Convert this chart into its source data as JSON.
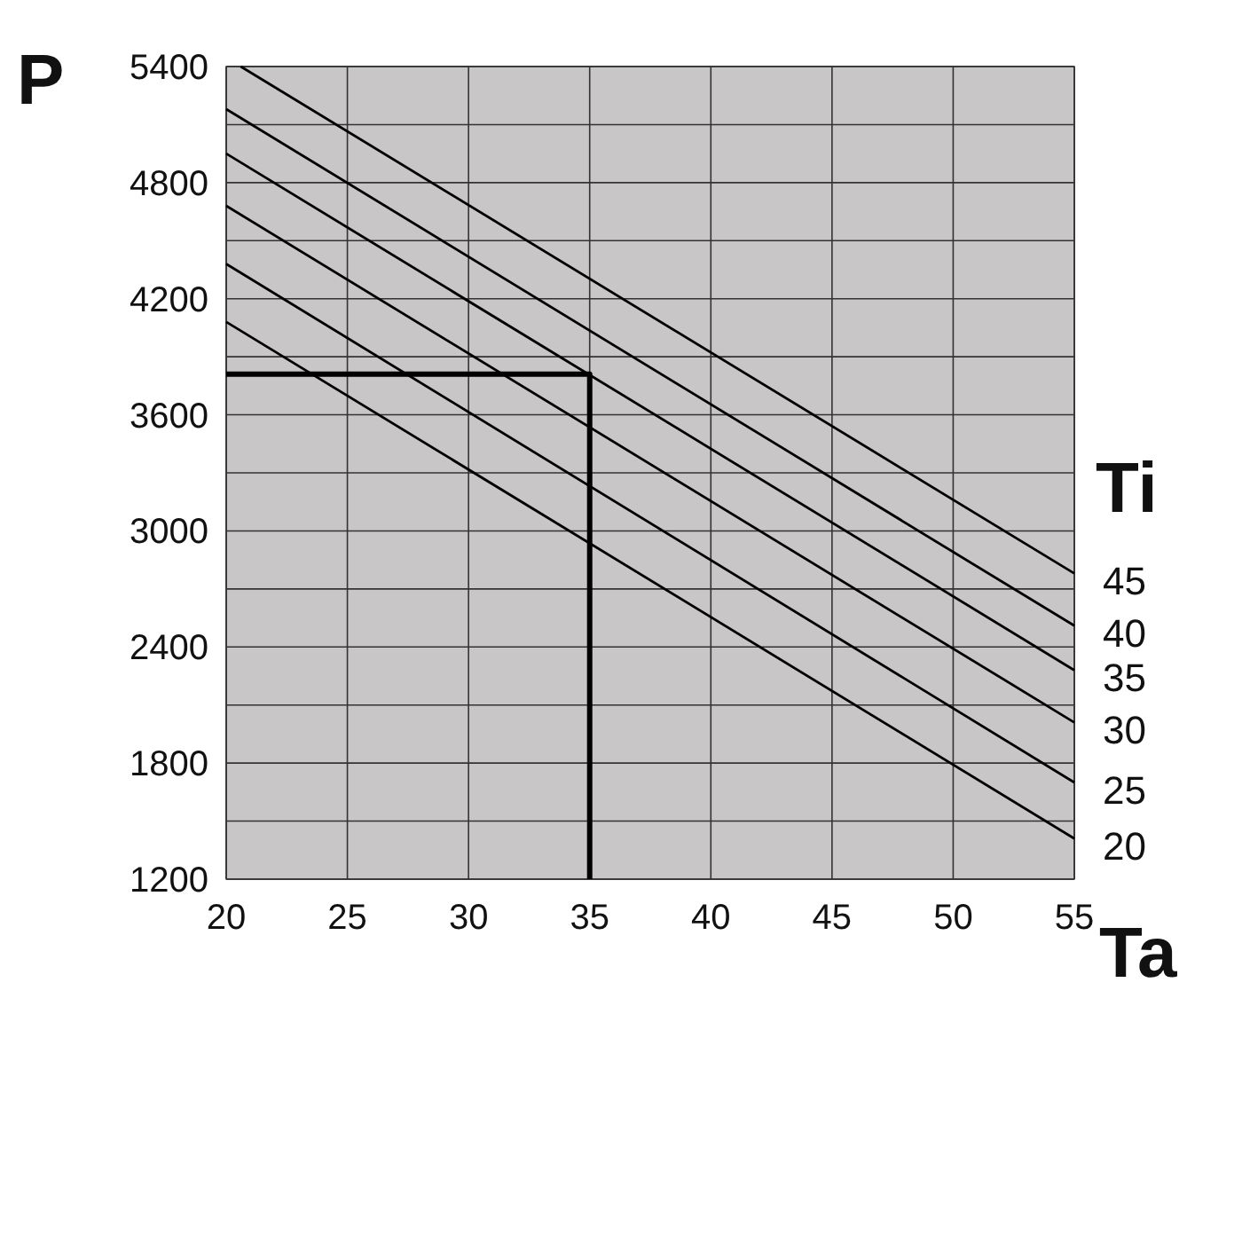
{
  "chart_data": {
    "type": "line",
    "xlabel": "Ta",
    "ylabel": "P",
    "legend_title": "Ti",
    "xlim": [
      20,
      55
    ],
    "ylim": [
      1200,
      5400
    ],
    "xticks": [
      20,
      25,
      30,
      35,
      40,
      45,
      50,
      55
    ],
    "yticks": [
      1200,
      {
        "value": 1500,
        "label": null
      },
      1800,
      {
        "value": 2100,
        "label": null
      },
      2400,
      {
        "value": 2700,
        "label": null
      },
      3000,
      {
        "value": 3300,
        "label": null
      },
      3600,
      {
        "value": 3900,
        "label": null
      },
      4200,
      {
        "value": 4500,
        "label": null
      },
      4800,
      {
        "value": 5100,
        "label": null
      },
      5400
    ],
    "grid": true,
    "legend": false,
    "marker": "none",
    "line_style": "solid",
    "series": [
      {
        "name": "45",
        "color": "#000000",
        "x": [
          20.6,
          55
        ],
        "values": [
          5400,
          2780
        ]
      },
      {
        "name": "40",
        "color": "#000000",
        "x": [
          20,
          55
        ],
        "values": [
          5180,
          2510
        ]
      },
      {
        "name": "35",
        "color": "#000000",
        "x": [
          20,
          55
        ],
        "values": [
          4950,
          2280
        ]
      },
      {
        "name": "30",
        "color": "#000000",
        "x": [
          20,
          55
        ],
        "values": [
          4680,
          2010
        ]
      },
      {
        "name": "25",
        "color": "#000000",
        "x": [
          20,
          55
        ],
        "values": [
          4380,
          1700
        ]
      },
      {
        "name": "20",
        "color": "#000000",
        "x": [
          20,
          55
        ],
        "values": [
          4080,
          1410
        ]
      },
      {
        "color": "#000000",
        "x": [
          20,
          35,
          35
        ],
        "values": [
          3810,
          3810,
          1200
        ],
        "line_style": "solid"
      }
    ]
  }
}
